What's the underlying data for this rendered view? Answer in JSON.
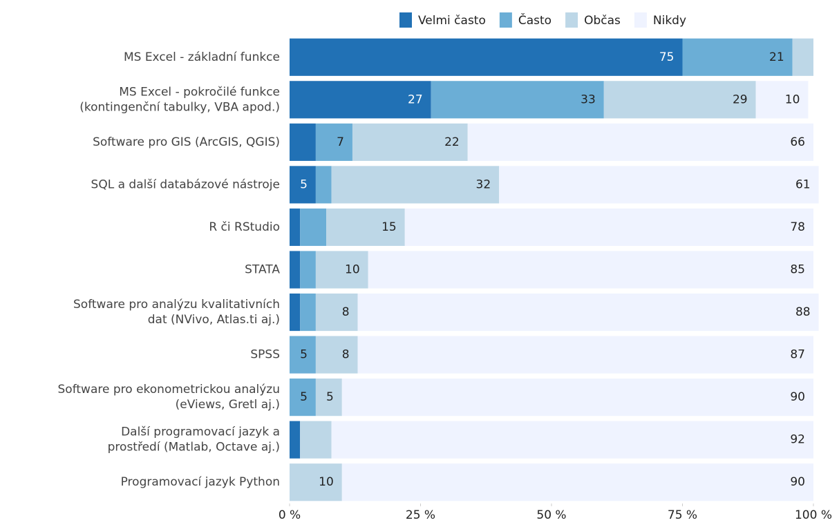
{
  "chart_data": {
    "type": "stacked-barh",
    "categories": [
      [
        "MS Excel - základní funkce"
      ],
      [
        "MS Excel - pokročilé funkce",
        "(kontingenční tabulky, VBA apod.)"
      ],
      [
        "Software pro GIS (ArcGIS, QGIS)"
      ],
      [
        "SQL a další databázové nástroje"
      ],
      [
        "R či RStudio"
      ],
      [
        "STATA"
      ],
      [
        "Software pro analýzu kvalitativních",
        "dat (NVivo, Atlas.ti aj.)"
      ],
      [
        "SPSS"
      ],
      [
        "Software pro ekonometrickou analýzu",
        "(eViews, Gretl aj.)"
      ],
      [
        "Další programovací jazyk a",
        "prostředí (Matlab, Octave aj.)"
      ],
      [
        "Programovací jazyk Python"
      ]
    ],
    "series": [
      {
        "name": "Velmi často",
        "color": "#2171b5",
        "label_color": "#ffffff",
        "values": [
          75,
          27,
          5,
          5,
          2,
          2,
          2,
          0,
          0,
          2,
          0
        ],
        "value_labels": [
          "75",
          "27",
          null,
          "5",
          null,
          null,
          null,
          null,
          null,
          null,
          null
        ]
      },
      {
        "name": "Často",
        "color": "#6baed6",
        "label_color": "#222222",
        "values": [
          21,
          33,
          7,
          3,
          5,
          3,
          3,
          5,
          5,
          0,
          0
        ],
        "value_labels": [
          "21",
          "33",
          "7",
          null,
          null,
          null,
          null,
          "5",
          "5",
          null,
          null
        ]
      },
      {
        "name": "Občas",
        "color": "#bdd7e7",
        "label_color": "#222222",
        "values": [
          4,
          29,
          22,
          32,
          15,
          10,
          8,
          8,
          5,
          6,
          10
        ],
        "value_labels": [
          null,
          "29",
          "22",
          "32",
          "15",
          "10",
          "8",
          "8",
          "5",
          null,
          "10"
        ]
      },
      {
        "name": "Nikdy",
        "color": "#eff3ff",
        "label_color": "#222222",
        "values": [
          0,
          10,
          66,
          61,
          78,
          85,
          88,
          87,
          90,
          92,
          90
        ],
        "value_labels": [
          null,
          "10",
          "66",
          "61",
          "78",
          "85",
          "88",
          "87",
          "90",
          "92",
          "90"
        ]
      }
    ],
    "xlim": [
      0,
      100
    ],
    "xticks": [
      {
        "value": 0,
        "label": "0 %"
      },
      {
        "value": 25,
        "label": "25 %"
      },
      {
        "value": 50,
        "label": "50 %"
      },
      {
        "value": 75,
        "label": "75 %"
      },
      {
        "value": 100,
        "label": "100 %"
      }
    ],
    "grid": false,
    "legend": "top"
  }
}
